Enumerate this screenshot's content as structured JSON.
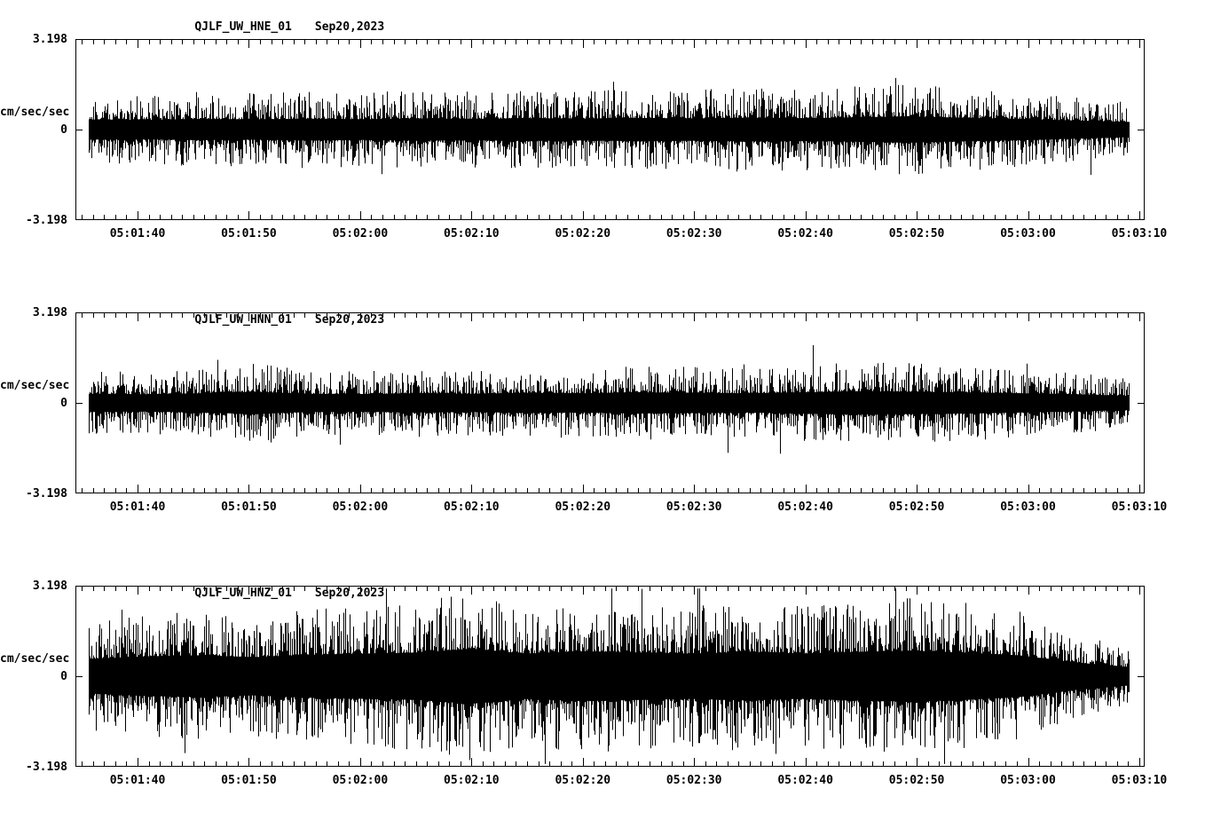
{
  "page": {
    "background": "#ffffff",
    "trace_color": "#000000",
    "axis_color": "#000000"
  },
  "chart_data": [
    {
      "type": "line",
      "title": "QJLF_UW_HNE_01",
      "date": "Sep20,2023",
      "ylabel": "cm/sec/sec",
      "ylim": [
        -3.198,
        3.198
      ],
      "yticks": [
        "3.198",
        "0",
        "-3.198"
      ],
      "xticks": [
        "05:01:40",
        "05:01:50",
        "05:02:00",
        "05:02:10",
        "05:02:20",
        "05:02:30",
        "05:02:40",
        "05:02:50",
        "05:03:00",
        "05:03:10"
      ],
      "grid": false,
      "legend": "none",
      "seed": 101,
      "band_fraction": 0.28,
      "envelope": [
        0.4,
        0.38,
        0.42,
        0.4,
        0.43,
        0.41,
        0.44,
        0.42,
        0.45,
        0.43,
        0.46,
        0.44,
        0.47,
        0.45,
        0.48,
        0.52,
        0.46,
        0.42,
        0.36,
        0.3
      ]
    },
    {
      "type": "line",
      "title": "QJLF_UW_HNN_01",
      "date": "Sep20,2023",
      "ylabel": "cm/sec/sec",
      "ylim": [
        -3.198,
        3.198
      ],
      "yticks": [
        "3.198",
        "0",
        "-3.198"
      ],
      "xticks": [
        "05:01:40",
        "05:01:50",
        "05:02:00",
        "05:02:10",
        "05:02:20",
        "05:02:30",
        "05:02:40",
        "05:02:50",
        "05:03:00",
        "05:03:10"
      ],
      "grid": false,
      "legend": "none",
      "seed": 202,
      "band_fraction": 0.28,
      "envelope": [
        0.36,
        0.34,
        0.38,
        0.44,
        0.36,
        0.35,
        0.38,
        0.36,
        0.4,
        0.38,
        0.42,
        0.4,
        0.38,
        0.42,
        0.46,
        0.44,
        0.42,
        0.38,
        0.34,
        0.28
      ]
    },
    {
      "type": "line",
      "title": "QJLF_UW_HNZ_01",
      "date": "Sep20,2023",
      "ylabel": "cm/sec/sec",
      "ylim": [
        -3.198,
        3.198
      ],
      "yticks": [
        "3.198",
        "0",
        "-3.198"
      ],
      "xticks": [
        "05:01:40",
        "05:01:50",
        "05:02:00",
        "05:02:10",
        "05:02:20",
        "05:02:30",
        "05:02:40",
        "05:02:50",
        "05:03:00",
        "05:03:10"
      ],
      "grid": false,
      "legend": "none",
      "seed": 303,
      "band_fraction": 0.32,
      "envelope": [
        0.6,
        0.68,
        0.72,
        0.66,
        0.74,
        0.78,
        0.82,
        0.95,
        0.78,
        0.86,
        0.82,
        0.78,
        0.84,
        0.78,
        0.84,
        0.88,
        0.82,
        0.72,
        0.48,
        0.32
      ]
    }
  ]
}
